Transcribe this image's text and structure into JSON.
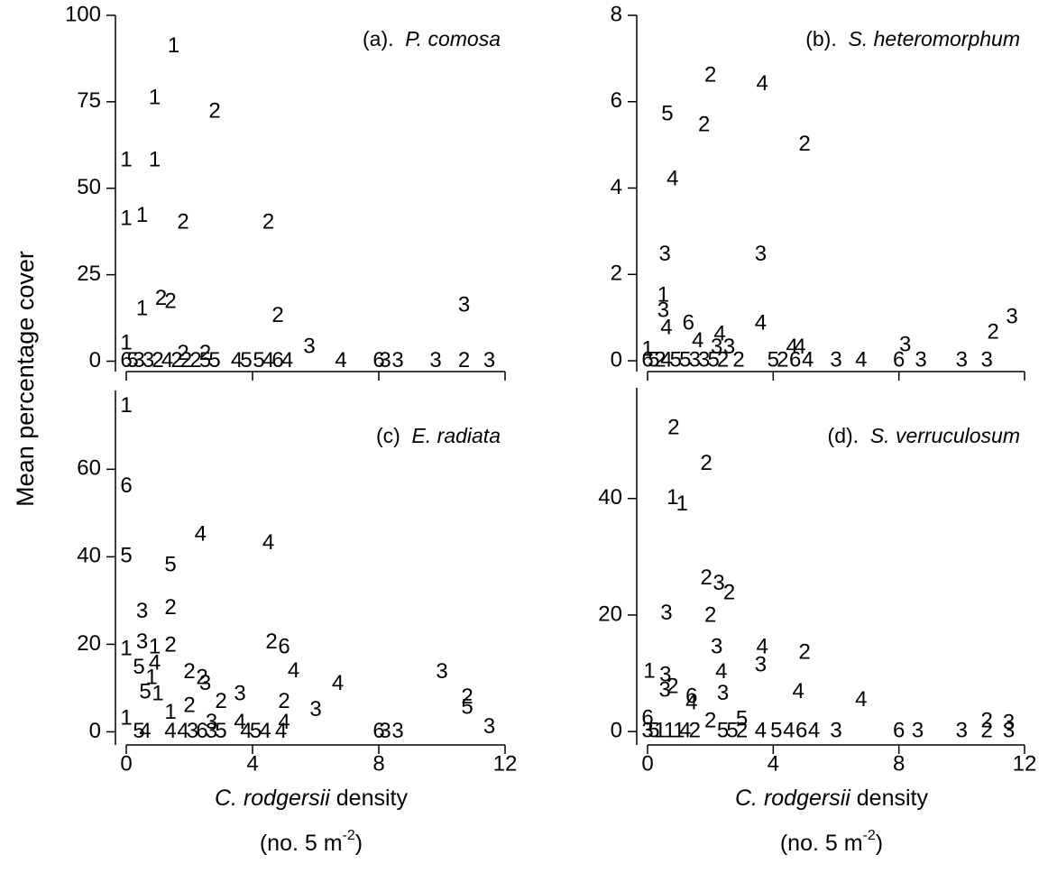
{
  "y_label": "Mean percentage cover",
  "x_label_italic": "C. rodgersii",
  "x_label_rest": "density",
  "x_unit": [
    "(no. 5 m",
    "-2",
    ")"
  ],
  "chart_data": [
    {
      "type": "scatter",
      "panel_label": "(a).",
      "species": "P. comosa",
      "x": [
        1.5,
        0.9,
        2.8,
        0,
        0.9,
        0,
        0.5,
        1.8,
        4.5,
        0.5,
        1.1,
        1.4,
        4.8,
        10.7,
        0,
        5.8,
        6.8,
        8.0,
        8.2,
        8.6,
        9.8,
        10.7,
        11.5,
        0,
        0.2,
        0.4,
        0.7,
        1.0,
        1.3,
        1.6,
        1.9,
        2.2,
        2.5,
        2.8,
        3.5,
        3.8,
        4.2,
        4.5,
        4.8,
        5.1,
        1.8,
        2.5
      ],
      "y": [
        91,
        76,
        72,
        58,
        58,
        41,
        42,
        40,
        40,
        15,
        18,
        17,
        13,
        16,
        5,
        4,
        0,
        0,
        0,
        0,
        0,
        0,
        0,
        0,
        0,
        0,
        0,
        0,
        0,
        0,
        0,
        0,
        0,
        0,
        0,
        0,
        0,
        0,
        0,
        0,
        2,
        2
      ],
      "labels": [
        "1",
        "1",
        "2",
        "1",
        "1",
        "1",
        "1",
        "2",
        "2",
        "1",
        "2",
        "2",
        "2",
        "3",
        "1",
        "3",
        "4",
        "6",
        "3",
        "3",
        "3",
        "2",
        "3",
        "6",
        "5",
        "3",
        "3",
        "2",
        "4",
        "2",
        "2",
        "2",
        "5",
        "5",
        "4",
        "5",
        "5",
        "4",
        "6",
        "4",
        "2",
        "2"
      ],
      "xlim": [
        0,
        12
      ],
      "ylim": [
        -3,
        100
      ],
      "xticks": [
        0,
        4,
        8,
        12
      ],
      "yticks": [
        0,
        25,
        50,
        75,
        100
      ]
    },
    {
      "type": "scatter",
      "panel_label": "(b).",
      "species": "S. heteromorphum",
      "x": [
        2.0,
        3.65,
        0.63,
        1.8,
        5.0,
        0.8,
        0.55,
        3.6,
        0.5,
        0.5,
        0.6,
        1.3,
        3.6,
        11.6,
        11.0,
        8.2,
        2.3,
        1.6,
        2.2,
        2.6,
        4.6,
        4.85,
        0,
        0,
        0.2,
        0.4,
        0.6,
        0.9,
        1.2,
        1.5,
        1.8,
        2.1,
        2.4,
        2.9,
        4.0,
        4.3,
        4.7,
        5.1,
        6.0,
        6.8,
        8.0,
        8.7,
        10.0,
        10.8
      ],
      "y": [
        6.6,
        6.4,
        5.7,
        5.45,
        5.0,
        4.2,
        2.45,
        2.45,
        1.5,
        1.15,
        0.75,
        0.85,
        0.85,
        1.0,
        0.65,
        0.35,
        0.6,
        0.45,
        0.3,
        0.3,
        0.3,
        0.3,
        0.25,
        0,
        0,
        0,
        0,
        0,
        0,
        0,
        0,
        0,
        0,
        0,
        0,
        0,
        0,
        0,
        0,
        0,
        0,
        0,
        0,
        0
      ],
      "labels": [
        "2",
        "4",
        "5",
        "2",
        "2",
        "4",
        "3",
        "3",
        "1",
        "3",
        "4",
        "6",
        "4",
        "3",
        "2",
        "3",
        "4",
        "4",
        "3",
        "3",
        "4",
        "4",
        "1",
        "6",
        "5",
        "2",
        "4",
        "5",
        "5",
        "3",
        "3",
        "5",
        "2",
        "2",
        "5",
        "2",
        "6",
        "4",
        "3",
        "4",
        "6",
        "3",
        "3",
        "3"
      ],
      "xlim": [
        0,
        12
      ],
      "ylim": [
        -0.25,
        8
      ],
      "xticks": [
        0,
        4,
        8,
        12
      ],
      "yticks": [
        0,
        2,
        4,
        6,
        8
      ]
    },
    {
      "type": "scatter",
      "panel_label": "(c)",
      "species": "E. radiata",
      "x": [
        0,
        0,
        0,
        2.35,
        4.5,
        1.4,
        0.5,
        1.4,
        0,
        0.5,
        0.9,
        1.4,
        4.6,
        5.0,
        2.0,
        2.4,
        2.5,
        5.3,
        6.7,
        10.0,
        10.8,
        10.8,
        11.5,
        3.6,
        3.0,
        5.0,
        6.0,
        2.0,
        1.4,
        1.0,
        0.6,
        0.8,
        0.4,
        0.9,
        0,
        0.4,
        0.6,
        1.4,
        1.8,
        2.1,
        2.4,
        2.7,
        3.0,
        3.8,
        4.1,
        4.4,
        4.9,
        8.0,
        8.2,
        8.6,
        3.6,
        2.7,
        5.0
      ],
      "y": [
        74.4,
        56,
        40,
        45,
        43,
        38,
        27.4,
        28.2,
        18.8,
        20.4,
        19.2,
        19.6,
        20.4,
        19.2,
        13.6,
        12.2,
        10.9,
        13.8,
        10.9,
        13.6,
        7.8,
        5.4,
        1.0,
        8.5,
        6.8,
        6.8,
        4.9,
        5.8,
        4.3,
        8.5,
        8.9,
        12.2,
        14.6,
        15.5,
        2.9,
        0,
        0,
        0,
        0,
        0,
        0,
        0,
        0,
        0,
        0,
        0,
        0,
        0,
        0,
        0,
        2,
        2,
        2
      ],
      "labels": [
        "1",
        "6",
        "5",
        "4",
        "4",
        "5",
        "3",
        "2",
        "1",
        "3",
        "1",
        "2",
        "2",
        "6",
        "2",
        "2",
        "3",
        "4",
        "4",
        "3",
        "2",
        "5",
        "3",
        "3",
        "2",
        "2",
        "3",
        "2",
        "1",
        "1",
        "5",
        "1",
        "5",
        "4",
        "1",
        "5",
        "4",
        "4",
        "4",
        "3",
        "6",
        "3",
        "5",
        "4",
        "5",
        "4",
        "4",
        "6",
        "3",
        "3",
        "4",
        "3",
        "4"
      ],
      "xlim": [
        0,
        12
      ],
      "ylim": [
        -3,
        78
      ],
      "xticks": [
        0,
        4,
        8,
        12
      ],
      "yticks": [
        0,
        20,
        40,
        60
      ]
    },
    {
      "type": "scatter",
      "panel_label": "(d).",
      "species": "S. verruculosum",
      "x": [
        0.83,
        1.87,
        0.8,
        1.1,
        1.87,
        2.27,
        2.6,
        0.6,
        2.0,
        2.2,
        3.65,
        5.0,
        3.6,
        2.35,
        0.06,
        0.57,
        0.8,
        0.55,
        1.4,
        1.4,
        2.4,
        4.8,
        6.8,
        11.5,
        10.8,
        3.0,
        2.0,
        0,
        0,
        0.2,
        0.4,
        0.7,
        1.0,
        1.2,
        1.5,
        2.4,
        2.7,
        3.0,
        3.6,
        4.1,
        4.5,
        4.9,
        5.3,
        6.0,
        8.0,
        8.6,
        10.0,
        10.8,
        11.5
      ],
      "y": [
        52,
        45.9,
        40,
        38.9,
        26.2,
        25.3,
        23.7,
        20.2,
        19.8,
        14.4,
        14.4,
        13.5,
        11.3,
        10.1,
        10.2,
        9.6,
        7.6,
        7.0,
        5.9,
        4.8,
        6.4,
        6.7,
        5.3,
        1.4,
        1.7,
        2.0,
        1.7,
        2.2,
        0,
        0,
        0,
        0,
        0,
        0,
        0,
        0,
        0,
        0,
        0,
        0,
        0,
        0,
        0,
        0,
        0,
        0,
        0,
        0,
        0
      ],
      "labels": [
        "2",
        "2",
        "1",
        "1",
        "2",
        "3",
        "2",
        "3",
        "2",
        "3",
        "4",
        "2",
        "3",
        "4",
        "1",
        "3",
        "2",
        "3",
        "6",
        "4",
        "3",
        "4",
        "4",
        "3",
        "2",
        "5",
        "2",
        "6",
        "3",
        "5",
        "1",
        "1",
        "1",
        "4",
        "2",
        "5",
        "5",
        "2",
        "4",
        "5",
        "4",
        "6",
        "4",
        "3",
        "6",
        "3",
        "3",
        "2",
        "3"
      ],
      "xlim": [
        0,
        12
      ],
      "ylim": [
        -2.3,
        59
      ],
      "xticks": [
        0,
        4,
        8,
        12
      ],
      "yticks": [
        0,
        20,
        40
      ]
    }
  ]
}
